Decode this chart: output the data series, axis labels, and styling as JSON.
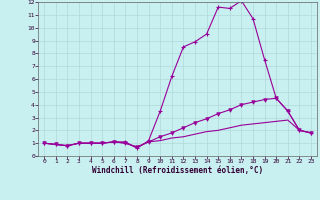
{
  "title": "",
  "xlabel": "Windchill (Refroidissement éolien,°C)",
  "bg_color": "#c8f0f0",
  "grid_color": "#b0d8d8",
  "line_color": "#990099",
  "xlim": [
    -0.5,
    23.5
  ],
  "ylim": [
    0,
    12
  ],
  "xticks": [
    0,
    1,
    2,
    3,
    4,
    5,
    6,
    7,
    8,
    9,
    10,
    11,
    12,
    13,
    14,
    15,
    16,
    17,
    18,
    19,
    20,
    21,
    22,
    23
  ],
  "yticks": [
    0,
    1,
    2,
    3,
    4,
    5,
    6,
    7,
    8,
    9,
    10,
    11,
    12
  ],
  "line1_x": [
    0,
    1,
    2,
    3,
    4,
    5,
    6,
    7,
    8,
    9,
    10,
    11,
    12,
    13,
    14,
    15,
    16,
    17,
    18,
    19,
    20,
    21,
    22,
    23
  ],
  "line1_y": [
    1.0,
    0.9,
    0.8,
    1.0,
    1.0,
    1.0,
    1.1,
    1.1,
    0.6,
    1.2,
    3.5,
    6.2,
    8.5,
    8.9,
    9.5,
    11.6,
    11.5,
    12.1,
    10.7,
    7.5,
    4.5,
    3.5,
    2.0,
    1.8
  ],
  "line2_x": [
    0,
    1,
    2,
    3,
    4,
    5,
    6,
    7,
    8,
    9,
    10,
    11,
    12,
    13,
    14,
    15,
    16,
    17,
    18,
    19,
    20,
    21,
    22,
    23
  ],
  "line2_y": [
    1.0,
    0.9,
    0.8,
    1.0,
    1.0,
    1.0,
    1.1,
    1.0,
    0.7,
    1.1,
    1.5,
    1.8,
    2.2,
    2.6,
    2.9,
    3.3,
    3.6,
    4.0,
    4.2,
    4.4,
    4.5,
    3.5,
    2.0,
    1.8
  ],
  "line3_x": [
    0,
    1,
    2,
    3,
    4,
    5,
    6,
    7,
    8,
    9,
    10,
    11,
    12,
    13,
    14,
    15,
    16,
    17,
    18,
    19,
    20,
    21,
    22,
    23
  ],
  "line3_y": [
    1.0,
    0.9,
    0.8,
    1.0,
    1.0,
    1.0,
    1.1,
    1.0,
    0.7,
    1.1,
    1.2,
    1.4,
    1.5,
    1.7,
    1.9,
    2.0,
    2.2,
    2.4,
    2.5,
    2.6,
    2.7,
    2.8,
    2.0,
    1.8
  ]
}
